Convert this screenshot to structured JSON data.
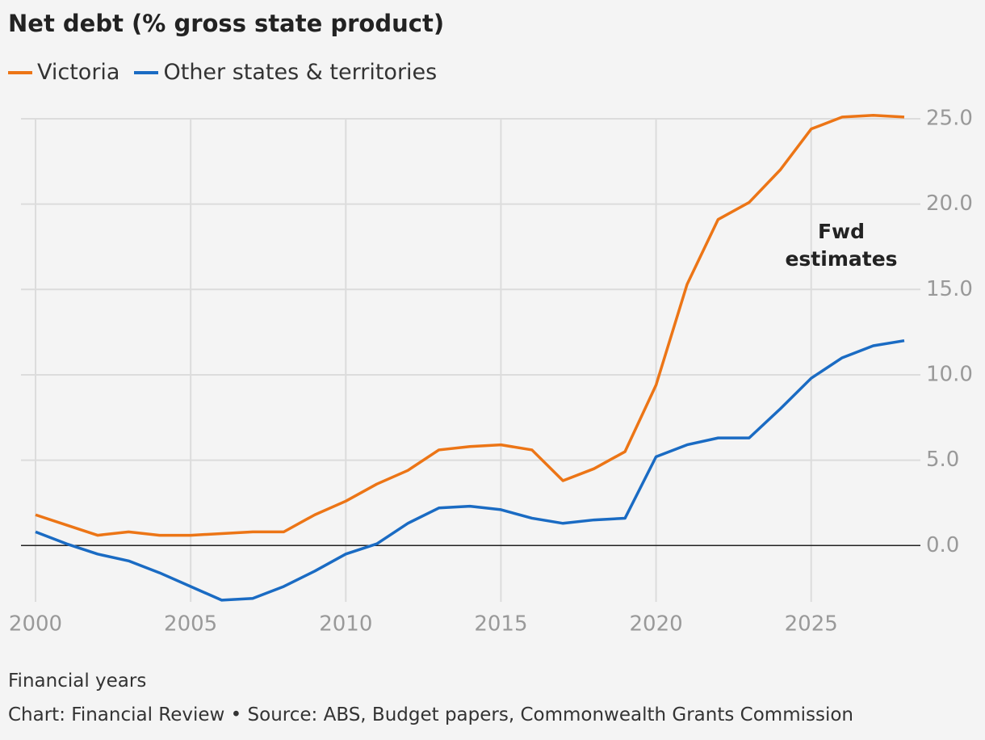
{
  "chart_data": {
    "type": "line",
    "title": "Net debt (% gross state product)",
    "x_label": "Financial years",
    "source": "Chart: Financial Review • Source: ABS, Budget papers, Commonwealth Grants Commission",
    "annotation": "Fwd estimates",
    "x": [
      2000,
      2001,
      2002,
      2003,
      2004,
      2005,
      2006,
      2007,
      2008,
      2009,
      2010,
      2011,
      2012,
      2013,
      2014,
      2015,
      2016,
      2017,
      2018,
      2019,
      2020,
      2021,
      2022,
      2023,
      2024,
      2025,
      2026,
      2027,
      2028
    ],
    "series": [
      {
        "name": "Victoria",
        "color": "#ec7516",
        "values": [
          1.8,
          1.2,
          0.6,
          0.8,
          0.6,
          0.6,
          0.7,
          0.8,
          0.8,
          1.8,
          2.6,
          3.6,
          4.4,
          5.6,
          5.8,
          5.9,
          5.6,
          3.8,
          4.5,
          5.5,
          9.4,
          15.3,
          19.1,
          20.1,
          22.0,
          24.4,
          25.1,
          25.2,
          25.1
        ]
      },
      {
        "name": "Other states & territories",
        "color": "#1a6bc3",
        "values": [
          0.8,
          0.1,
          -0.5,
          -0.9,
          -1.6,
          -2.4,
          -3.2,
          -3.1,
          -2.4,
          -1.5,
          -0.5,
          0.1,
          1.3,
          2.2,
          2.3,
          2.1,
          1.6,
          1.3,
          1.5,
          1.6,
          5.2,
          5.9,
          6.3,
          6.3,
          8.0,
          9.8,
          11.0,
          11.7,
          12.0
        ]
      }
    ],
    "xlim": [
      2000,
      2028
    ],
    "xticks": [
      2000,
      2005,
      2010,
      2015,
      2020,
      2025
    ],
    "ylim": [
      -3.3,
      25
    ],
    "yticks": [
      {
        "value": 0,
        "label": "0.0"
      },
      {
        "value": 5,
        "label": "5.0"
      },
      {
        "value": 10,
        "label": "10.0"
      },
      {
        "value": 15,
        "label": "15.0"
      },
      {
        "value": 20,
        "label": "20.0"
      },
      {
        "value": 25,
        "label": "25.0"
      }
    ],
    "grid": true
  }
}
